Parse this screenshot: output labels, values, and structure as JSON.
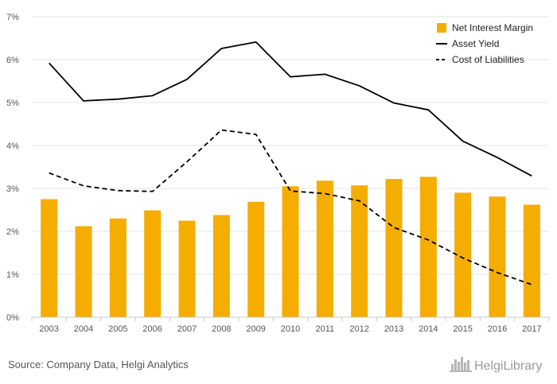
{
  "chart_data": {
    "type": "bar",
    "categories": [
      "2003",
      "2004",
      "2005",
      "2006",
      "2007",
      "2008",
      "2009",
      "2010",
      "2011",
      "2012",
      "2013",
      "2014",
      "2015",
      "2016",
      "2017"
    ],
    "series": [
      {
        "name": "Net Interest Margin",
        "kind": "bar",
        "color": "#f5ad00",
        "values": [
          2.75,
          2.12,
          2.3,
          2.49,
          2.25,
          2.38,
          2.69,
          3.05,
          3.18,
          3.07,
          3.22,
          3.27,
          2.9,
          2.81,
          2.62
        ]
      },
      {
        "name": "Asset Yield",
        "kind": "line",
        "style": "solid",
        "color": "#000000",
        "values": [
          5.92,
          5.04,
          5.08,
          5.16,
          5.54,
          6.26,
          6.41,
          5.6,
          5.66,
          5.39,
          4.99,
          4.83,
          4.1,
          3.72,
          3.29
        ]
      },
      {
        "name": "Cost of Liabilities",
        "kind": "line",
        "style": "dashed",
        "color": "#000000",
        "values": [
          3.36,
          3.06,
          2.95,
          2.93,
          3.62,
          4.36,
          4.26,
          2.94,
          2.88,
          2.71,
          2.09,
          1.8,
          1.38,
          1.04,
          0.76
        ]
      }
    ],
    "yticks": [
      "0%",
      "1%",
      "2%",
      "3%",
      "4%",
      "5%",
      "6%",
      "7%"
    ],
    "ylim": [
      0,
      7
    ],
    "grid": true,
    "legend_position": "top-right"
  },
  "footer": {
    "source": "Source: Company Data, Helgi Analytics",
    "brand": "HelgiLibrary"
  }
}
